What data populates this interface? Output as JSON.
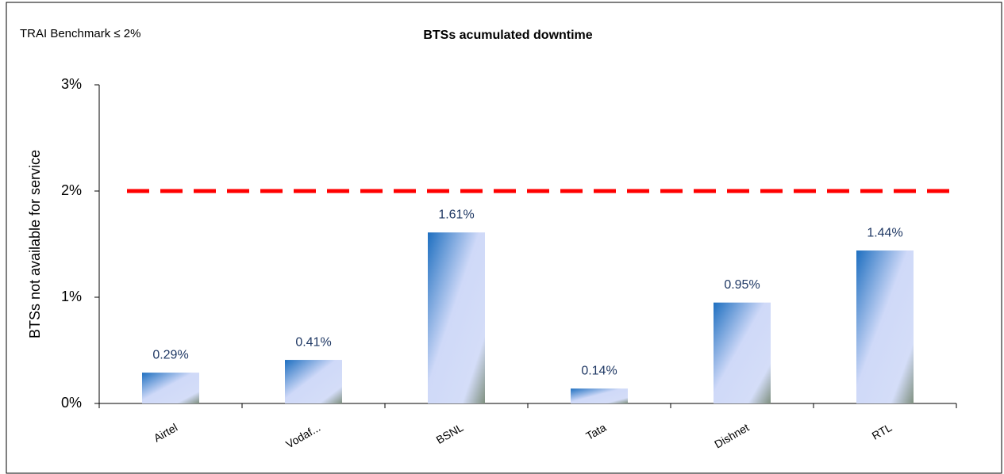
{
  "chart_data": {
    "type": "bar",
    "title": "BTSs acumulated downtime",
    "annotation": "TRAI Benchmark ≤ 2%",
    "y_label": "BTSs not available for service",
    "categories": [
      "Airtel",
      "Vodaf...",
      "BSNL",
      "Tata",
      "Dishnet",
      "RTL"
    ],
    "values": [
      0.29,
      0.41,
      1.61,
      0.14,
      0.95,
      1.44
    ],
    "value_labels": [
      "0.29%",
      "0.41%",
      "1.61%",
      "0.14%",
      "0.95%",
      "1.44%"
    ],
    "color": "#1e6fc0",
    "reference_line": {
      "value": 2,
      "color": "#ff0000"
    },
    "ylim": [
      0,
      3
    ],
    "yticks": [
      {
        "value": 0,
        "label": "0%"
      },
      {
        "value": 1,
        "label": "1%"
      },
      {
        "value": 2,
        "label": "2%"
      },
      {
        "value": 3,
        "label": "3%"
      }
    ]
  }
}
